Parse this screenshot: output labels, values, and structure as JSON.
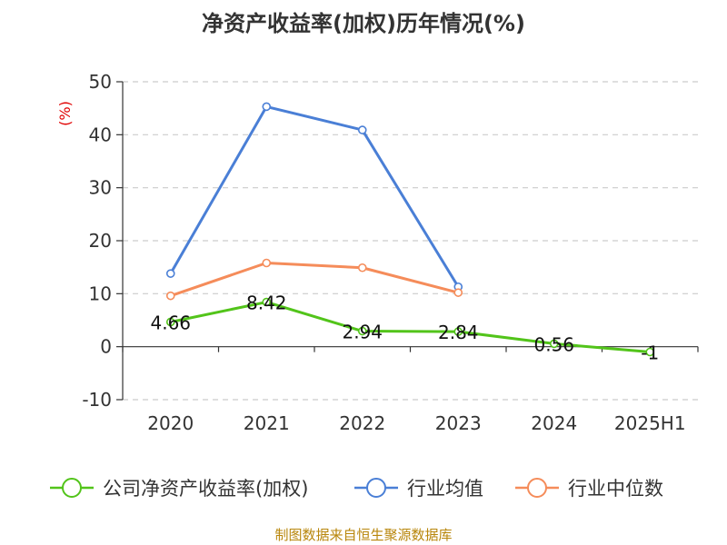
{
  "chart_data": {
    "type": "line",
    "title": "净资产收益率(加权)历年情况(%)",
    "ylabel": "(%)",
    "categories": [
      "2020",
      "2021",
      "2022",
      "2023",
      "2024",
      "2025H1"
    ],
    "ylim": [
      -10,
      50
    ],
    "yticks": [
      "-10",
      "0",
      "10",
      "20",
      "30",
      "40",
      "50"
    ],
    "grid": true,
    "legend_position": "bottom",
    "series": [
      {
        "name": "公司净资产收益率(加权)",
        "color": "#52c41a",
        "values": [
          4.66,
          8.42,
          2.94,
          2.84,
          0.56,
          -1
        ],
        "labels": [
          "4.66",
          "8.42",
          "2.94",
          "2.84",
          "0.56",
          "-1"
        ]
      },
      {
        "name": "行业均值",
        "color": "#4a7fd6",
        "values": [
          13.8,
          45.3,
          40.9,
          11.3,
          null,
          null
        ]
      },
      {
        "name": "行业中位数",
        "color": "#f58c5a",
        "values": [
          9.6,
          15.8,
          14.9,
          10.2,
          null,
          null
        ]
      }
    ]
  },
  "footer": {
    "source": "制图数据来自恒生聚源数据库"
  }
}
